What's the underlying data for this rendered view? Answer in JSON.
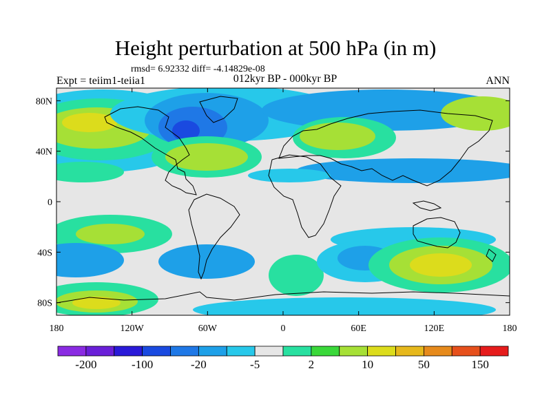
{
  "title": "Height perturbation at 500 hPa (in m)",
  "stats_line": "rmsd= 6.92332 diff= -4.14829e-08",
  "experiment_label": "Expt = teiim1-teiia1",
  "period_label": "012kyr BP - 000kyr BP",
  "season_label": "ANN",
  "map": {
    "projection": "cylindrical equidistant",
    "lon_range": [
      -180,
      180
    ],
    "lat_range": [
      -90,
      90
    ],
    "lat_ticks": [
      {
        "value": 80,
        "label": "80N"
      },
      {
        "value": 40,
        "label": "40N"
      },
      {
        "value": 0,
        "label": "0"
      },
      {
        "value": -40,
        "label": "40S"
      },
      {
        "value": -80,
        "label": "80S"
      }
    ],
    "lon_ticks": [
      {
        "value": -180,
        "label": "180"
      },
      {
        "value": -120,
        "label": "120W"
      },
      {
        "value": -60,
        "label": "60W"
      },
      {
        "value": 0,
        "label": "0"
      },
      {
        "value": 60,
        "label": "60E"
      },
      {
        "value": 120,
        "label": "120E"
      },
      {
        "value": 180,
        "label": "180"
      }
    ],
    "background_color": "#e6e6e6",
    "coastline_color": "#000000"
  },
  "colorbar": {
    "colors": [
      "#8a2be2",
      "#6a1fd8",
      "#2a1ad8",
      "#1a4ae0",
      "#1f78e6",
      "#1ea0e8",
      "#27c8ea",
      "#e6e6e6",
      "#28e0a0",
      "#3ad83a",
      "#a6e036",
      "#dcdc1c",
      "#e6b81c",
      "#e68a1c",
      "#e6501c",
      "#e61c1c"
    ],
    "tick_labels": [
      {
        "label": "-200",
        "boundary": 1
      },
      {
        "label": "-100",
        "boundary": 3
      },
      {
        "label": "-20",
        "boundary": 5
      },
      {
        "label": "-5",
        "boundary": 7
      },
      {
        "label": "2",
        "boundary": 9
      },
      {
        "label": "10",
        "boundary": 11
      },
      {
        "label": "50",
        "boundary": 13
      },
      {
        "label": "150",
        "boundary": 15
      }
    ]
  }
}
